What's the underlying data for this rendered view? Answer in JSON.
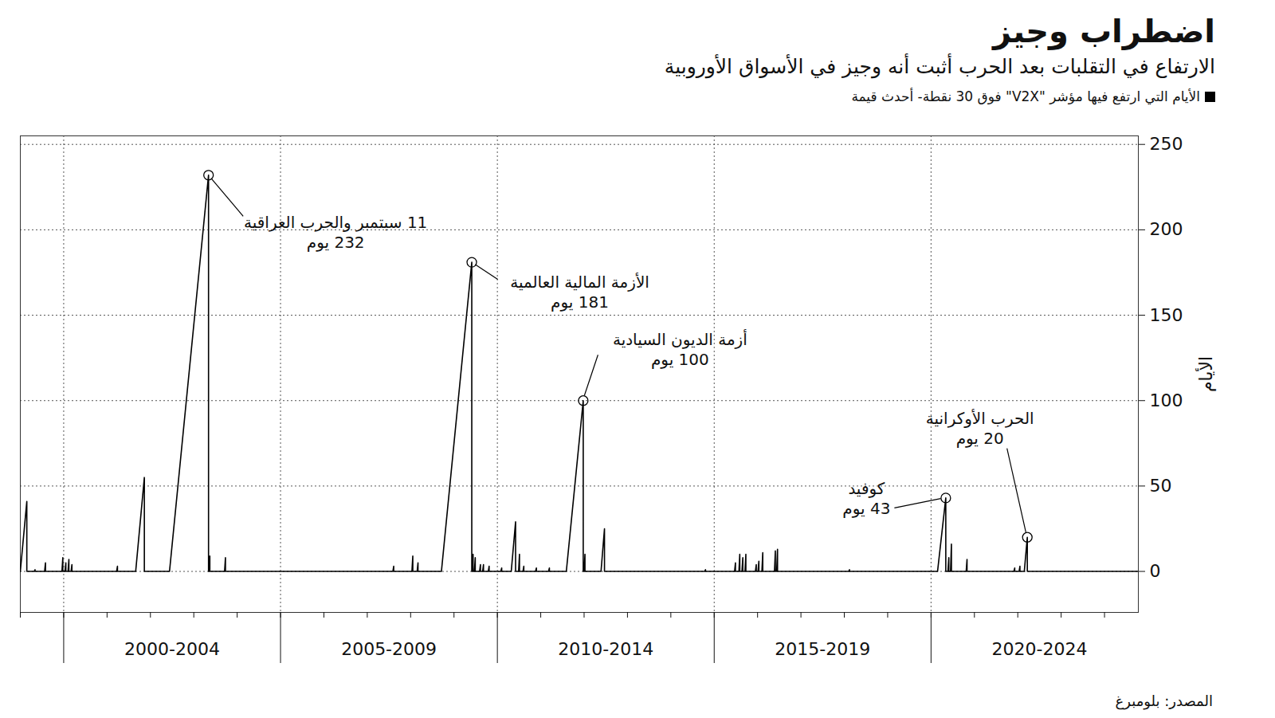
{
  "chart_data": {
    "type": "line",
    "title": "اضطراب وجيز",
    "subtitle": "الارتفاع في التقلبات بعد الحرب أثبت أنه وجيز في الأسواق الأوروبية",
    "source": "المصدر: بلومبرغ",
    "y_label": "الأيام",
    "legend": "top",
    "grid": true,
    "xlim": [
      1999.0,
      2024.78
    ],
    "xticks": [
      {
        "value": 2002.5,
        "label": "2000-2004"
      },
      {
        "value": 2007.5,
        "label": "2005-2009"
      },
      {
        "value": 2012.5,
        "label": "2010-2014"
      },
      {
        "value": 2017.5,
        "label": "2015-2019"
      },
      {
        "value": 2022.5,
        "label": "2020-2024"
      }
    ],
    "ylim": [
      -24,
      255
    ],
    "yticks": [
      0,
      50,
      100,
      150,
      200,
      250
    ],
    "x": [
      1999.0,
      1999.15,
      1999.15,
      1999.32,
      1999.34,
      1999.34,
      1999.56,
      1999.58,
      1999.58,
      1999.96,
      1999.98,
      1999.98,
      2000.03,
      2000.05,
      2000.05,
      2000.1,
      2000.12,
      2000.12,
      2000.17,
      2000.19,
      2000.19,
      2001.22,
      2001.24,
      2001.24,
      2001.66,
      2001.86,
      2001.86,
      2002.44,
      2003.34,
      2003.34,
      2003.35,
      2003.37,
      2003.37,
      2003.71,
      2003.73,
      2003.73,
      2007.59,
      2007.61,
      2007.61,
      2008.03,
      2008.05,
      2008.05,
      2008.15,
      2008.17,
      2008.17,
      2008.71,
      2009.41,
      2009.41,
      2009.42,
      2009.44,
      2009.44,
      2009.47,
      2009.49,
      2009.49,
      2009.59,
      2009.61,
      2009.61,
      2009.66,
      2009.68,
      2009.68,
      2009.79,
      2009.81,
      2009.81,
      2010.08,
      2010.1,
      2010.1,
      2010.32,
      2010.42,
      2010.42,
      2010.49,
      2010.51,
      2010.51,
      2010.59,
      2010.61,
      2010.61,
      2010.88,
      2010.9,
      2010.9,
      2011.18,
      2011.2,
      2011.2,
      2011.59,
      2011.98,
      2011.98,
      2012.0,
      2012.02,
      2012.02,
      2012.39,
      2012.47,
      2012.47,
      2014.78,
      2014.8,
      2014.8,
      2015.47,
      2015.49,
      2015.49,
      2015.57,
      2015.59,
      2015.59,
      2015.64,
      2015.66,
      2015.66,
      2015.71,
      2015.73,
      2015.73,
      2015.95,
      2015.97,
      2015.97,
      2016.01,
      2016.03,
      2016.03,
      2016.1,
      2016.12,
      2016.12,
      2016.39,
      2016.41,
      2016.41,
      2016.44,
      2016.46,
      2016.46,
      2018.1,
      2018.12,
      2018.12,
      2020.15,
      2020.34,
      2020.34,
      2020.39,
      2020.41,
      2020.41,
      2020.45,
      2020.47,
      2020.47,
      2020.81,
      2020.83,
      2020.83,
      2021.91,
      2021.93,
      2021.93,
      2022.03,
      2022.05,
      2022.05,
      2022.15,
      2022.22,
      2022.22,
      2024.78
    ],
    "series": [
      {
        "name": "الأيام التي ارتفع فيها مؤشر \"V2X\" فوق 30 نقطة- أحدث قيمة",
        "color": "#000000",
        "values": [
          0,
          41,
          0,
          0,
          1,
          0,
          0,
          5,
          0,
          0,
          8,
          0,
          0,
          5,
          0,
          0,
          7,
          0,
          0,
          4,
          0,
          0,
          3,
          0,
          0,
          55,
          0,
          0,
          232,
          0,
          0,
          9,
          0,
          0,
          8,
          0,
          0,
          3,
          0,
          0,
          9,
          0,
          0,
          5,
          0,
          0,
          181,
          0,
          0,
          10,
          0,
          0,
          8,
          0,
          0,
          4,
          0,
          0,
          4,
          0,
          0,
          3,
          0,
          0,
          2,
          0,
          0,
          29,
          0,
          0,
          10,
          0,
          0,
          3,
          0,
          0,
          2,
          0,
          0,
          2,
          0,
          0,
          100,
          0,
          0,
          10,
          0,
          0,
          25,
          0,
          0,
          1,
          0,
          0,
          5,
          0,
          0,
          10,
          0,
          0,
          8,
          0,
          0,
          10,
          0,
          0,
          4,
          0,
          0,
          6,
          0,
          0,
          11,
          0,
          0,
          12,
          0,
          0,
          13,
          0,
          0,
          1,
          0,
          0,
          43,
          0,
          0,
          8,
          0,
          0,
          16,
          0,
          0,
          7,
          0,
          0,
          2,
          0,
          0,
          3,
          0,
          0,
          20,
          0,
          0
        ]
      }
    ],
    "annotations": [
      {
        "text": [
          "11 سبتمبر والحرب العراقية",
          "232 يوم"
        ],
        "x": 2003.34,
        "y": 232
      },
      {
        "text": [
          "الأزمة المالية العالمية",
          "181 يوم"
        ],
        "x": 2009.41,
        "y": 181
      },
      {
        "text": [
          "أزمة الديون السيادية",
          "100 يوم"
        ],
        "x": 2011.98,
        "y": 100
      },
      {
        "text": [
          "كوفيد",
          "43 يوم"
        ],
        "x": 2020.34,
        "y": 43
      },
      {
        "text": [
          "الحرب الأوكرانية",
          "20 يوم"
        ],
        "x": 2022.22,
        "y": 20
      }
    ]
  }
}
